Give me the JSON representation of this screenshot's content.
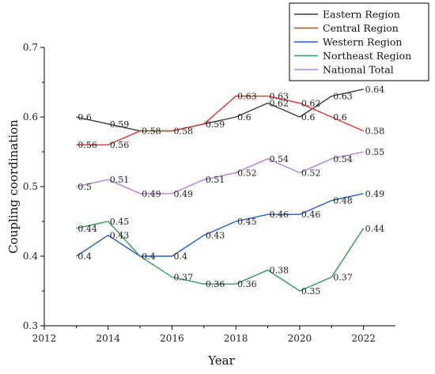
{
  "chart_data": {
    "type": "line",
    "title": "",
    "xlabel": "Year",
    "ylabel": "Coupling coordination",
    "xlim": [
      2012,
      2023
    ],
    "ylim": [
      0.3,
      0.7
    ],
    "x_ticks": [
      2012,
      2014,
      2016,
      2018,
      2020,
      2022
    ],
    "y_ticks": [
      0.3,
      0.4,
      0.5,
      0.6,
      0.7
    ],
    "x_tick_labels": [
      "2012",
      "2014",
      "2016",
      "2018",
      "2020",
      "2022"
    ],
    "y_tick_labels": [
      "0.3",
      "0.4",
      "0.5",
      "0.6",
      "0.7"
    ],
    "grid": false,
    "legend_position": "top-right",
    "x": [
      2013,
      2014,
      2015,
      2016,
      2017,
      2018,
      2019,
      2020,
      2021,
      2022
    ],
    "series": [
      {
        "name": "Eastern Region",
        "color": "#3a3a3a",
        "values": [
          0.6,
          0.59,
          0.58,
          0.58,
          0.59,
          0.6,
          0.62,
          0.6,
          0.63,
          0.64
        ],
        "labels": [
          "0.6",
          "0.59",
          "0.58",
          "0.58",
          "0.59",
          "0.6",
          "0.62",
          "0.6",
          "0.63",
          "0.64"
        ],
        "label_points": [
          2013,
          2014,
          2017,
          2018,
          2019,
          2020,
          2021,
          2022
        ]
      },
      {
        "name": "Central Region",
        "color": "#e8312f",
        "values": [
          0.56,
          0.56,
          0.58,
          0.58,
          0.59,
          0.63,
          0.63,
          0.62,
          0.6,
          0.58
        ],
        "labels": [
          "0.56",
          "0.56",
          "0.58",
          "0.58",
          "0.59",
          "0.63",
          "0.63",
          "0.62",
          "0.6",
          "0.58"
        ],
        "label_points": [
          2013,
          2014,
          2015,
          2016,
          2018,
          2019,
          2020,
          2021,
          2022
        ]
      },
      {
        "name": "Western Region",
        "color": "#1f5fc9",
        "values": [
          0.4,
          0.43,
          0.4,
          0.4,
          0.43,
          0.45,
          0.46,
          0.46,
          0.48,
          0.49
        ],
        "labels": [
          "0.4",
          "0.43",
          "0.4",
          "0.4",
          "0.43",
          "0.45",
          "0.46",
          "0.46",
          "0.48",
          "0.49"
        ],
        "label_points": [
          2013,
          2014,
          2015,
          2016,
          2017,
          2018,
          2019,
          2020,
          2021,
          2022
        ]
      },
      {
        "name": "Northeast Region",
        "color": "#2e9e57",
        "values": [
          0.44,
          0.45,
          0.4,
          0.37,
          0.36,
          0.36,
          0.38,
          0.35,
          0.37,
          0.44
        ],
        "labels": [
          "0.44",
          "0.45",
          "0.4",
          "0.37",
          "0.36",
          "0.36",
          "0.38",
          "0.35",
          "0.37",
          "0.44"
        ],
        "label_points": [
          2013,
          2014,
          2016,
          2017,
          2018,
          2019,
          2020,
          2021,
          2022
        ]
      },
      {
        "name": "National Total",
        "color": "#b57ee0",
        "values": [
          0.5,
          0.51,
          0.49,
          0.49,
          0.51,
          0.52,
          0.54,
          0.52,
          0.54,
          0.55
        ],
        "labels": [
          "0.5",
          "0.51",
          "0.49",
          "0.49",
          "0.51",
          "0.52",
          "0.54",
          "0.52",
          "0.54",
          "0.55"
        ],
        "label_points": [
          2013,
          2014,
          2015,
          2016,
          2017,
          2018,
          2019,
          2020,
          2021,
          2022
        ]
      }
    ]
  }
}
